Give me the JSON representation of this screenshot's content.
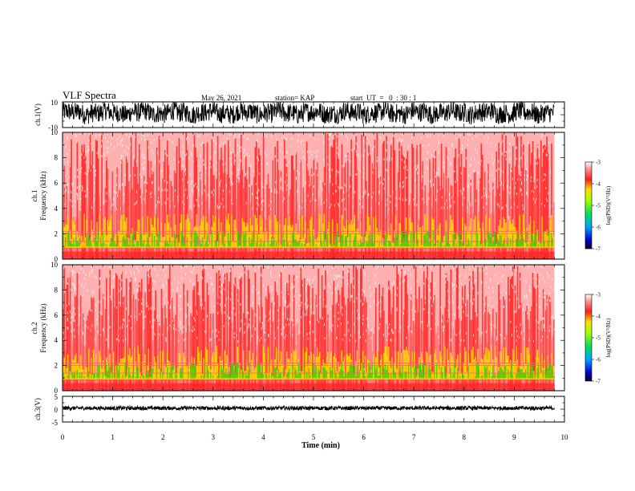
{
  "header": {
    "title": "VLF Spectra",
    "date": "May 26, 2021",
    "station": "station= KAP",
    "start": "start  UT  =   0  : 30 : 1"
  },
  "colors": {
    "spectrogram_low": "#0000a0",
    "spectrogram_mid": "#22d000",
    "spectrogram_high": "#ff1a1a",
    "trace": "#000000"
  },
  "chart_data": [
    {
      "type": "line",
      "name": "ch1-waveform",
      "ylabel": "ch.1(V)",
      "ylim": [
        -10,
        10
      ],
      "yticks": [
        "10",
        "-10"
      ],
      "xlim": [
        0,
        10
      ],
      "description_values": "dense voltage waveform, amplitude roughly -6 to 9 V, recorded until about 9.8 min"
    },
    {
      "type": "heatmap",
      "name": "ch1-spectrogram",
      "ylabel_line1": "ch.1",
      "ylabel_line2": "Frequency  (kHz)",
      "ylim": [
        0,
        10
      ],
      "yticks": [
        "0",
        "2",
        "4",
        "6",
        "8",
        "10"
      ],
      "xlim": [
        0,
        10
      ],
      "data_end_min": 9.8,
      "colorbar": {
        "label": "log(PSD)(V²/Hz)",
        "range": [
          -7,
          -3
        ],
        "ticks": [
          "-3",
          "-4",
          "-5",
          "-6",
          "-7"
        ]
      }
    },
    {
      "type": "heatmap",
      "name": "ch2-spectrogram",
      "ylabel_line1": "ch.2",
      "ylabel_line2": "Frequency  (kHz)",
      "ylim": [
        0,
        10
      ],
      "yticks": [
        "0",
        "2",
        "4",
        "6",
        "8",
        "10"
      ],
      "xlim": [
        0,
        10
      ],
      "data_end_min": 9.8,
      "colorbar": {
        "label": "log(PSD)(V²/Hz)",
        "range": [
          -7,
          -3
        ],
        "ticks": [
          "-3",
          "-4",
          "-5",
          "-6",
          "-7"
        ]
      }
    },
    {
      "type": "line",
      "name": "ch3-waveform",
      "ylabel": "ch.3(V)",
      "ylim": [
        -5,
        5
      ],
      "yticks": [
        "5",
        "0",
        "-5"
      ],
      "xlim": [
        0,
        10
      ],
      "xlabel": "Time  (min)",
      "xticks": [
        "0",
        "1",
        "2",
        "3",
        "4",
        "5",
        "6",
        "7",
        "8",
        "9",
        "10"
      ]
    }
  ]
}
